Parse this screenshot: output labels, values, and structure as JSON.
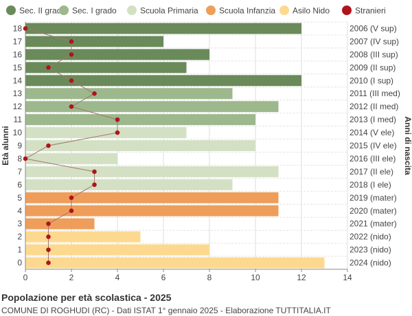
{
  "chart_data": {
    "type": "bar",
    "orientation": "horizontal",
    "ylabel_left": "Età alunni",
    "ylabel_right": "Anni di nascita",
    "xlim": [
      0,
      14
    ],
    "xticks": [
      0,
      2,
      4,
      6,
      8,
      10,
      12,
      14
    ],
    "grid": true,
    "legend_position": "top",
    "legend": [
      {
        "name": "Sec. II grado",
        "color": "#6a8a5a"
      },
      {
        "name": "Sec. I grado",
        "color": "#9cb88c"
      },
      {
        "name": "Scuola Primaria",
        "color": "#d3e0c4"
      },
      {
        "name": "Scuola Infanzia",
        "color": "#ee9e5a"
      },
      {
        "name": "Asilo Nido",
        "color": "#fdd98f"
      },
      {
        "name": "Stranieri",
        "color": "#b0141b"
      }
    ],
    "rows": [
      {
        "age": "18",
        "year": "2006 (V sup)",
        "value": 12,
        "stranieri": 0,
        "group": 0
      },
      {
        "age": "17",
        "year": "2007 (IV sup)",
        "value": 6,
        "stranieri": 2,
        "group": 0
      },
      {
        "age": "16",
        "year": "2008 (III sup)",
        "value": 8,
        "stranieri": 2,
        "group": 0
      },
      {
        "age": "15",
        "year": "2009 (II sup)",
        "value": 7,
        "stranieri": 1,
        "group": 0
      },
      {
        "age": "14",
        "year": "2010 (I sup)",
        "value": 12,
        "stranieri": 2,
        "group": 0
      },
      {
        "age": "13",
        "year": "2011 (III med)",
        "value": 9,
        "stranieri": 3,
        "group": 1
      },
      {
        "age": "12",
        "year": "2012 (II med)",
        "value": 11,
        "stranieri": 2,
        "group": 1
      },
      {
        "age": "11",
        "year": "2013 (I med)",
        "value": 10,
        "stranieri": 4,
        "group": 1
      },
      {
        "age": "10",
        "year": "2014 (V ele)",
        "value": 7,
        "stranieri": 4,
        "group": 2
      },
      {
        "age": "9",
        "year": "2015 (IV ele)",
        "value": 10,
        "stranieri": 1,
        "group": 2
      },
      {
        "age": "8",
        "year": "2016 (III ele)",
        "value": 4,
        "stranieri": 0,
        "group": 2
      },
      {
        "age": "7",
        "year": "2017 (II ele)",
        "value": 11,
        "stranieri": 3,
        "group": 2
      },
      {
        "age": "6",
        "year": "2018 (I ele)",
        "value": 9,
        "stranieri": 3,
        "group": 2
      },
      {
        "age": "5",
        "year": "2019 (mater)",
        "value": 11,
        "stranieri": 2,
        "group": 3
      },
      {
        "age": "4",
        "year": "2020 (mater)",
        "value": 11,
        "stranieri": 2,
        "group": 3
      },
      {
        "age": "3",
        "year": "2021 (mater)",
        "value": 3,
        "stranieri": 1,
        "group": 3
      },
      {
        "age": "2",
        "year": "2022 (nido)",
        "value": 5,
        "stranieri": 1,
        "group": 4
      },
      {
        "age": "1",
        "year": "2023 (nido)",
        "value": 8,
        "stranieri": 1,
        "group": 4
      },
      {
        "age": "0",
        "year": "2024 (nido)",
        "value": 13,
        "stranieri": 1,
        "group": 4
      }
    ]
  },
  "footer": {
    "title": "Popolazione per età scolastica - 2025",
    "subtitle": "COMUNE DI ROGHUDI (RC) - Dati ISTAT 1° gennaio 2025 - Elaborazione TUTTITALIA.IT"
  }
}
